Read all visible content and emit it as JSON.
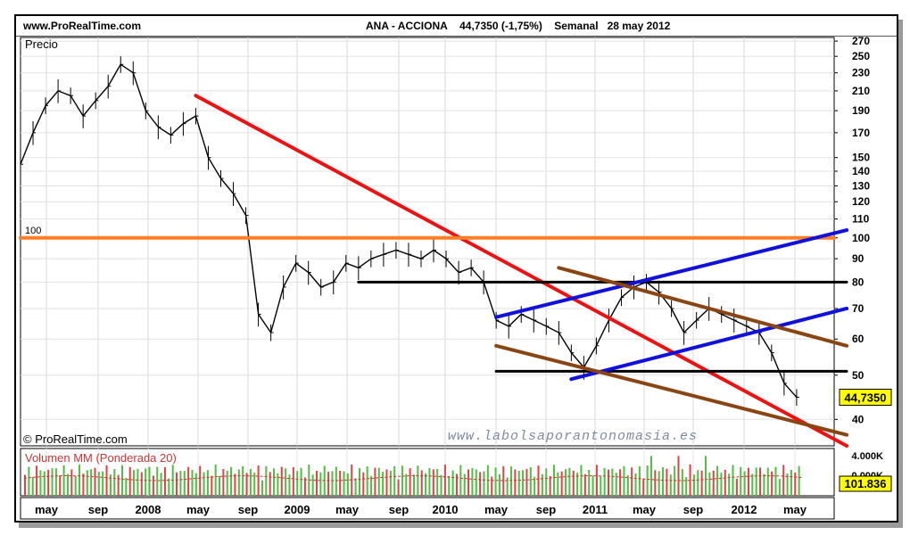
{
  "header": {
    "site": "www.ProRealTime.com",
    "instrument": "ANA - ACCIONA",
    "quote": "44,7350 (-1,75%)",
    "period": "Semanal",
    "date": "28 may 2012"
  },
  "price_panel": {
    "label": "Precio",
    "level_label": "100",
    "copyright": "© ProRealTime.com",
    "watermark": "www.labolsaporantonomasia.es",
    "last_price_tag": "44,7350"
  },
  "volume_panel": {
    "label": "Volumen MM (Ponderada 20)",
    "tick_high": "4.000K",
    "tick_low": "0.000K",
    "last_value_tag": "101.836"
  },
  "colors": {
    "accent_orange": "#ff7f27",
    "red_trend": "#ee1111",
    "blue_channel": "#1111dd",
    "brown_channel": "#8b4513",
    "support_black": "#000000",
    "last_price_bg": "#ffff00",
    "volume_up": "#55bb44",
    "volume_down": "#dd4444"
  },
  "chart_data": [
    {
      "type": "line",
      "title": "ANA - ACCIONA Semanal",
      "yscale": "log",
      "ylim": [
        35,
        275
      ],
      "yticks": [
        40,
        50,
        60,
        70,
        80,
        90,
        100,
        110,
        120,
        130,
        140,
        150,
        170,
        190,
        210,
        230,
        250,
        270
      ],
      "x_tick_labels": [
        "may",
        "sep",
        "2008",
        "may",
        "sep",
        "2009",
        "may",
        "sep",
        "2010",
        "may",
        "sep",
        "2011",
        "may",
        "sep",
        "2012",
        "may"
      ],
      "grid": true,
      "series": [
        {
          "name": "Precio",
          "points": [
            [
              "2007-03",
              145
            ],
            [
              "2007-04",
              170
            ],
            [
              "2007-05",
              195
            ],
            [
              "2007-06",
              210
            ],
            [
              "2007-07",
              205
            ],
            [
              "2007-08",
              185
            ],
            [
              "2007-09",
              200
            ],
            [
              "2007-10",
              215
            ],
            [
              "2007-11",
              240
            ],
            [
              "2007-12",
              230
            ],
            [
              "2008-01",
              190
            ],
            [
              "2008-02",
              175
            ],
            [
              "2008-03",
              168
            ],
            [
              "2008-04",
              178
            ],
            [
              "2008-05",
              185
            ],
            [
              "2008-06",
              150
            ],
            [
              "2008-07",
              135
            ],
            [
              "2008-08",
              125
            ],
            [
              "2008-09",
              112
            ],
            [
              "2008-10",
              68
            ],
            [
              "2008-11",
              62
            ],
            [
              "2008-12",
              78
            ],
            [
              "2009-01",
              88
            ],
            [
              "2009-02",
              84
            ],
            [
              "2009-03",
              78
            ],
            [
              "2009-04",
              80
            ],
            [
              "2009-05",
              88
            ],
            [
              "2009-06",
              86
            ],
            [
              "2009-07",
              90
            ],
            [
              "2009-08",
              92
            ],
            [
              "2009-09",
              94
            ],
            [
              "2009-10",
              92
            ],
            [
              "2009-11",
              90
            ],
            [
              "2009-12",
              94
            ],
            [
              "2010-01",
              90
            ],
            [
              "2010-02",
              84
            ],
            [
              "2010-03",
              86
            ],
            [
              "2010-04",
              80
            ],
            [
              "2010-05",
              66
            ],
            [
              "2010-06",
              64
            ],
            [
              "2010-07",
              68
            ],
            [
              "2010-08",
              66
            ],
            [
              "2010-09",
              64
            ],
            [
              "2010-10",
              62
            ],
            [
              "2010-11",
              56
            ],
            [
              "2010-12",
              52
            ],
            [
              "2011-01",
              58
            ],
            [
              "2011-02",
              66
            ],
            [
              "2011-03",
              74
            ],
            [
              "2011-04",
              78
            ],
            [
              "2011-05",
              80
            ],
            [
              "2011-06",
              76
            ],
            [
              "2011-07",
              70
            ],
            [
              "2011-08",
              62
            ],
            [
              "2011-09",
              66
            ],
            [
              "2011-10",
              70
            ],
            [
              "2011-11",
              68
            ],
            [
              "2011-12",
              66
            ],
            [
              "2012-01",
              64
            ],
            [
              "2012-02",
              62
            ],
            [
              "2012-03",
              56
            ],
            [
              "2012-04",
              48
            ],
            [
              "2012-05",
              44.735
            ]
          ]
        }
      ],
      "trendlines": [
        {
          "name": "red-downtrend",
          "color": "#ee1111",
          "from": [
            "2008-05",
            205
          ],
          "to": [
            "2012-09",
            35
          ]
        },
        {
          "name": "orange-level",
          "color": "#ff7f27",
          "value": 100
        },
        {
          "name": "black-resistance",
          "color": "#000000",
          "from": [
            "2009-06",
            80
          ],
          "to": [
            "2012-09",
            80
          ]
        },
        {
          "name": "black-support",
          "color": "#000000",
          "from": [
            "2010-05",
            51
          ],
          "to": [
            "2012-09",
            51
          ]
        },
        {
          "name": "blue-upper",
          "color": "#1111dd",
          "from": [
            "2010-05",
            67
          ],
          "to": [
            "2012-09",
            104
          ]
        },
        {
          "name": "blue-lower",
          "color": "#1111dd",
          "from": [
            "2010-11",
            49
          ],
          "to": [
            "2012-09",
            70
          ]
        },
        {
          "name": "brown-upper",
          "color": "#8b4513",
          "from": [
            "2010-10",
            86
          ],
          "to": [
            "2012-09",
            58
          ]
        },
        {
          "name": "brown-lower",
          "color": "#8b4513",
          "from": [
            "2010-05",
            58
          ],
          "to": [
            "2012-09",
            37
          ]
        }
      ],
      "last_price": 44.735
    },
    {
      "type": "bar",
      "title": "Volumen MM (Ponderada 20)",
      "y_tick_labels": [
        "4.000K",
        "0.000K"
      ],
      "last_value": "101.836",
      "up_color": "#55bb44",
      "down_color": "#dd4444"
    }
  ]
}
